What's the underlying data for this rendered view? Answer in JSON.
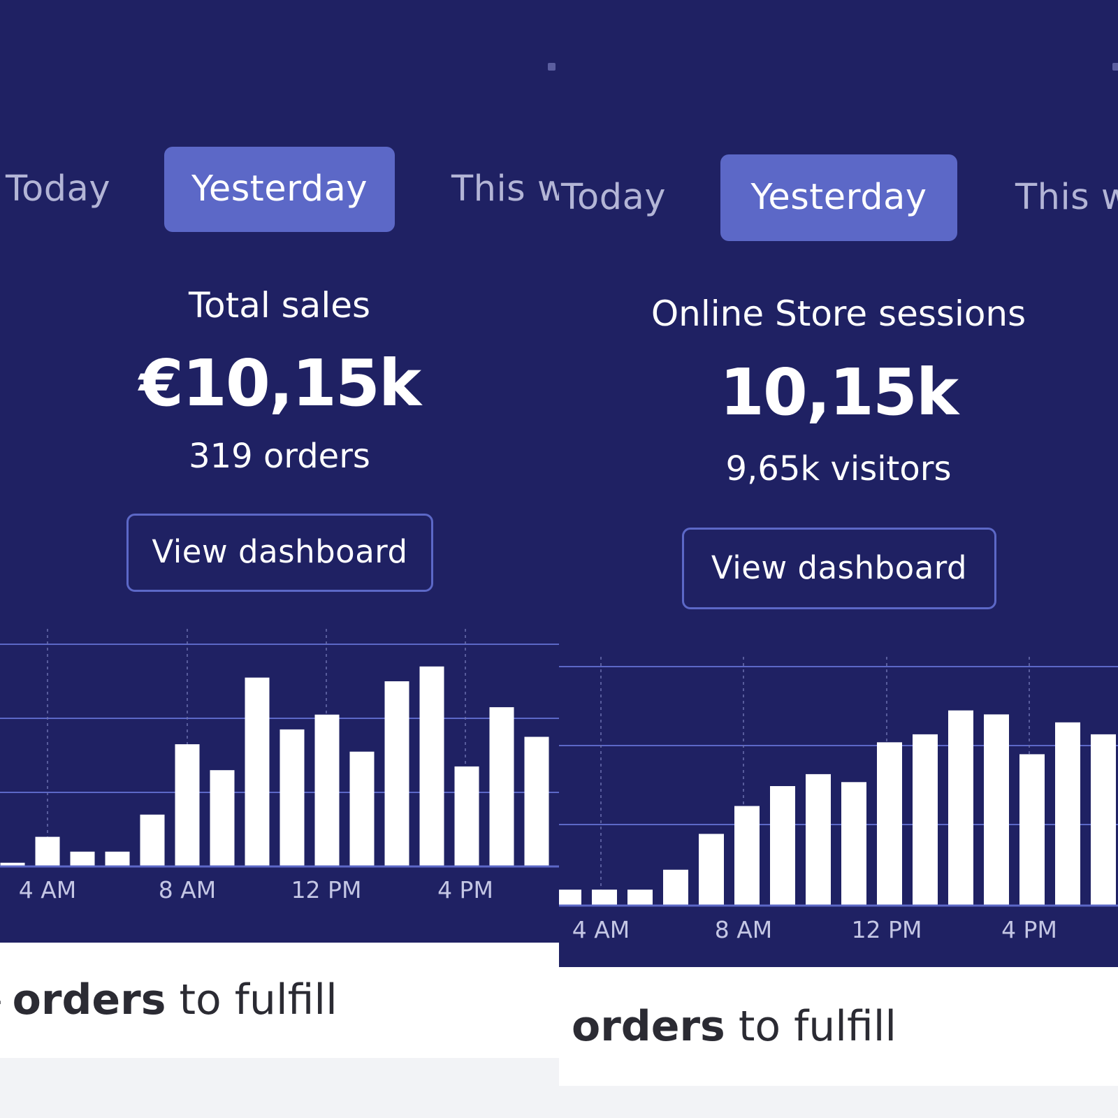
{
  "panels": [
    {
      "tabs": {
        "today": "Today",
        "active": "Yesterday",
        "this_week": "This w"
      },
      "metric": {
        "label": "Total sales",
        "value": "€10,15k",
        "sub": "319 orders"
      },
      "button": "View dashboard",
      "fulfill": {
        "bold": "orders",
        "rest": " to fulfill",
        "prefix": "-"
      }
    },
    {
      "tabs": {
        "today": "Today",
        "active": "Yesterday",
        "this_week": "This w"
      },
      "metric": {
        "label": "Online Store sessions",
        "value": "10,15k",
        "sub": "9,65k visitors"
      },
      "button": "View dashboard",
      "fulfill": {
        "bold": "orders",
        "rest": " to fulfill"
      }
    }
  ],
  "chart_data": [
    {
      "type": "bar",
      "x_tick_labels": [
        "4 AM",
        "8 AM",
        "12 PM",
        "4 PM"
      ],
      "values": [
        0.5,
        4,
        2,
        2,
        7,
        16.5,
        13,
        25.5,
        18.5,
        20.5,
        15.5,
        25,
        27,
        13.5,
        21.5,
        17.5
      ],
      "ylim": [
        0,
        30
      ],
      "grid": true,
      "bar_color": "#ffffff",
      "grid_color": "#5c68c7"
    },
    {
      "type": "bar",
      "x_tick_labels": [
        "4 AM",
        "8 AM",
        "12 PM",
        "4 PM"
      ],
      "values": [
        2,
        2,
        2,
        4.5,
        9,
        12.5,
        15,
        16.5,
        15.5,
        20.5,
        21.5,
        24.5,
        24,
        19,
        23,
        21.5
      ],
      "ylim": [
        0,
        30
      ],
      "grid": true,
      "bar_color": "#ffffff",
      "grid_color": "#5c68c7"
    }
  ]
}
